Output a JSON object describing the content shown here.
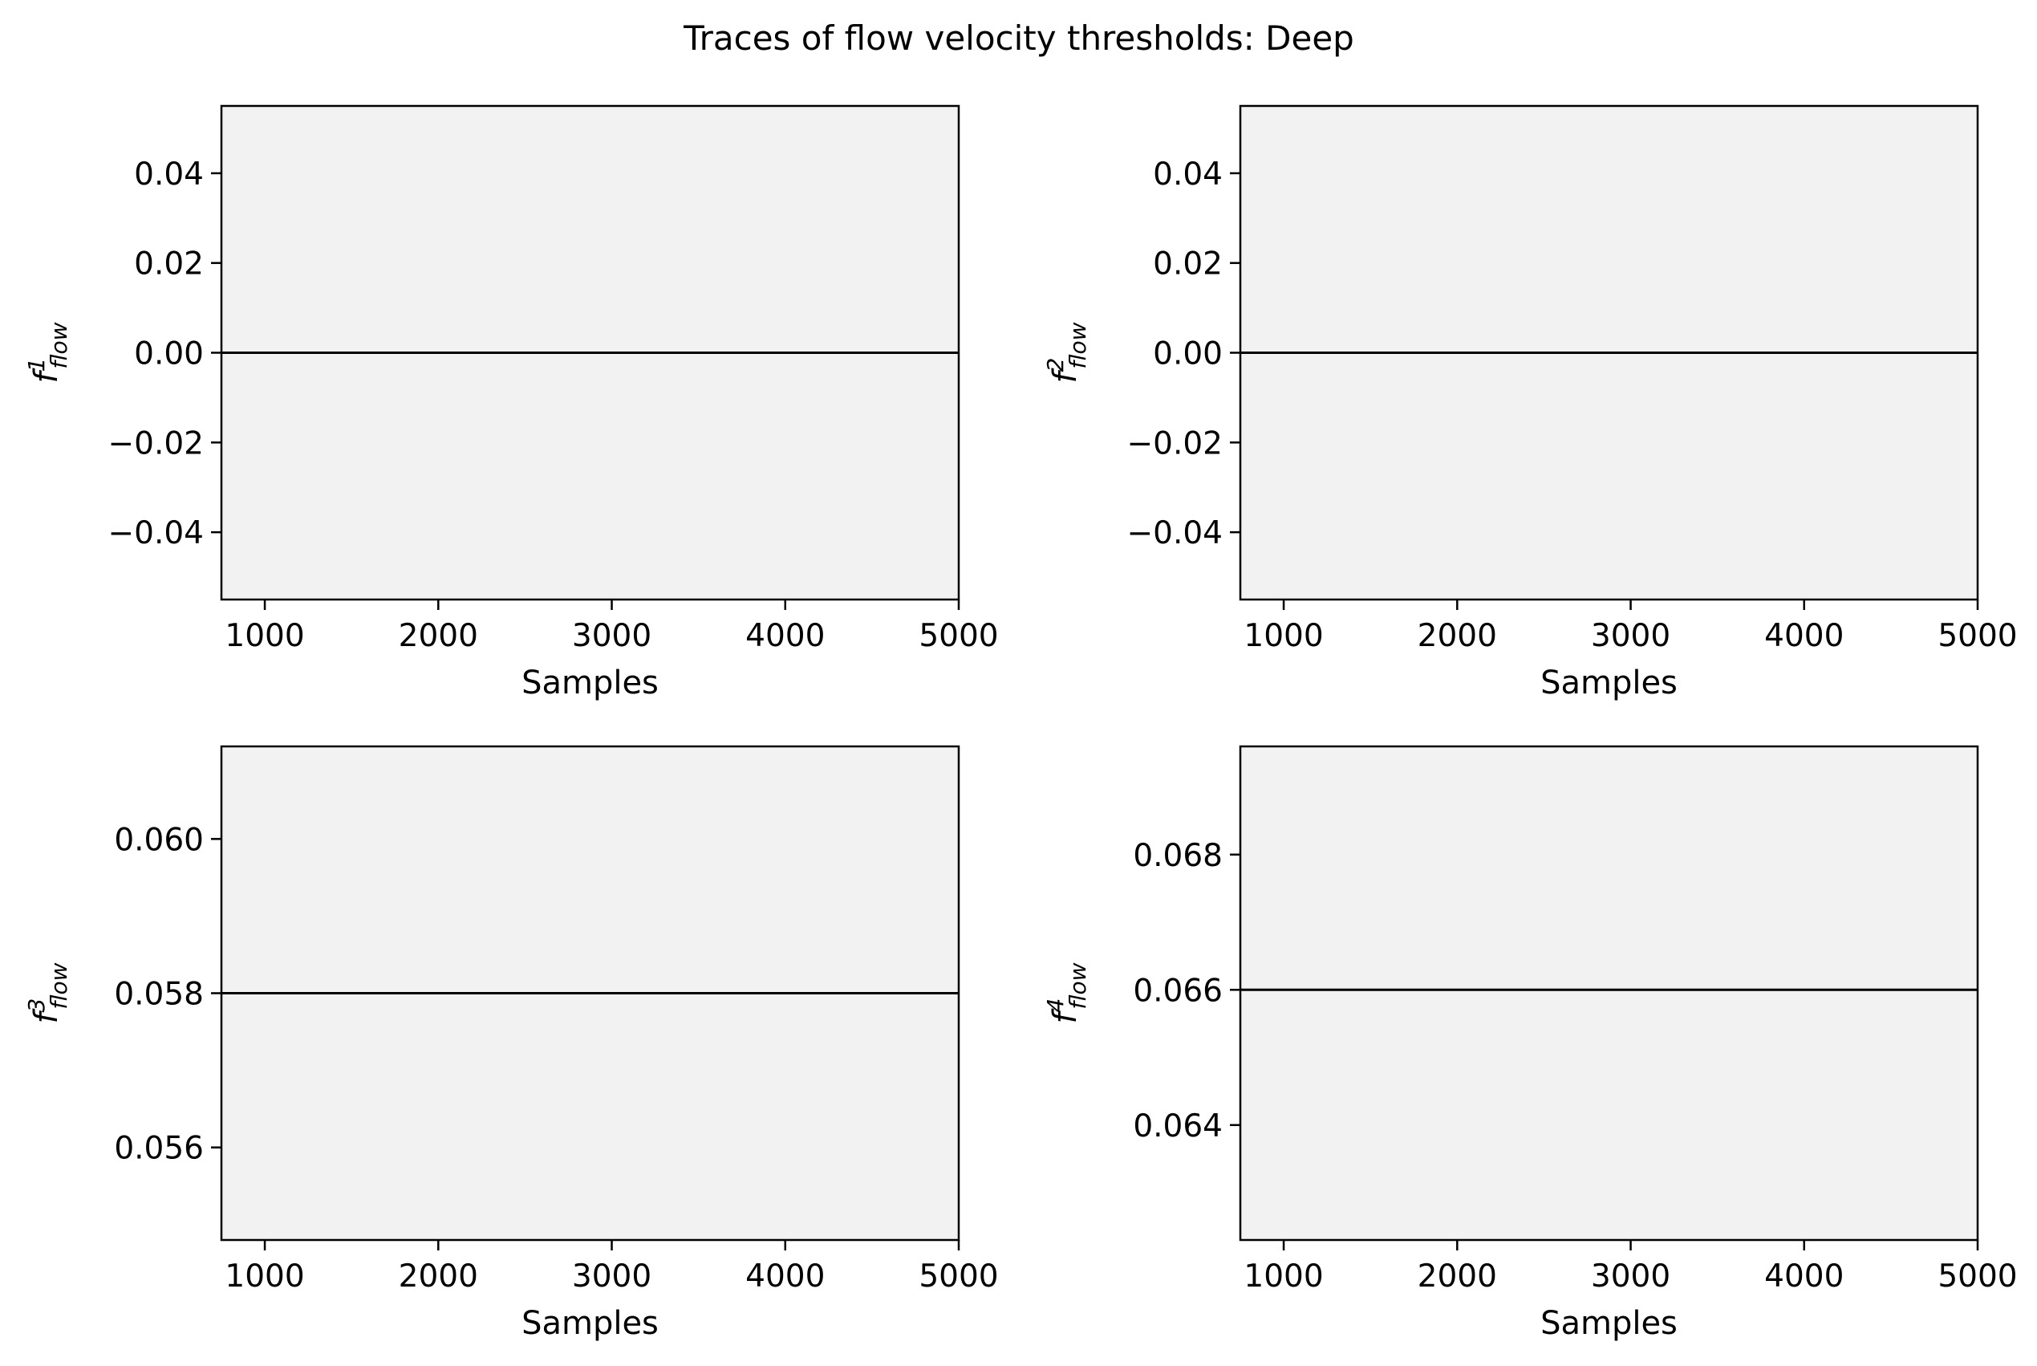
{
  "chart_data": {
    "title": "Traces of flow velocity thresholds: Deep",
    "panels": [
      {
        "type": "line",
        "xlabel": "Samples",
        "ylabel": {
          "base": "f",
          "sup": "1",
          "sub": "flow"
        },
        "xlim": [
          750,
          5000
        ],
        "ylim": [
          -0.055,
          0.055
        ],
        "xticks": [
          1000,
          2000,
          3000,
          4000,
          5000
        ],
        "xtick_labels": [
          "1000",
          "2000",
          "3000",
          "4000",
          "5000"
        ],
        "yticks": [
          -0.04,
          -0.02,
          0.0,
          0.02,
          0.04
        ],
        "ytick_labels": [
          "−0.04",
          "−0.02",
          "0.00",
          "0.02",
          "0.04"
        ],
        "series": [
          {
            "x": [
              750,
              5000
            ],
            "y": [
              0.0,
              0.0
            ],
            "color": "#000000"
          }
        ],
        "background": "#f2f2f2",
        "grid": false
      },
      {
        "type": "line",
        "xlabel": "Samples",
        "ylabel": {
          "base": "f",
          "sup": "2",
          "sub": "flow"
        },
        "xlim": [
          750,
          5000
        ],
        "ylim": [
          -0.055,
          0.055
        ],
        "xticks": [
          1000,
          2000,
          3000,
          4000,
          5000
        ],
        "xtick_labels": [
          "1000",
          "2000",
          "3000",
          "4000",
          "5000"
        ],
        "yticks": [
          -0.04,
          -0.02,
          0.0,
          0.02,
          0.04
        ],
        "ytick_labels": [
          "−0.04",
          "−0.02",
          "0.00",
          "0.02",
          "0.04"
        ],
        "series": [
          {
            "x": [
              750,
              5000
            ],
            "y": [
              0.0,
              0.0
            ],
            "color": "#000000"
          }
        ],
        "background": "#f2f2f2",
        "grid": false
      },
      {
        "type": "line",
        "xlabel": "Samples",
        "ylabel": {
          "base": "f",
          "sup": "3",
          "sub": "flow"
        },
        "xlim": [
          750,
          5000
        ],
        "ylim": [
          0.0548,
          0.0612
        ],
        "xticks": [
          1000,
          2000,
          3000,
          4000,
          5000
        ],
        "xtick_labels": [
          "1000",
          "2000",
          "3000",
          "4000",
          "5000"
        ],
        "yticks": [
          0.056,
          0.058,
          0.06
        ],
        "ytick_labels": [
          "0.056",
          "0.058",
          "0.060"
        ],
        "series": [
          {
            "x": [
              750,
              5000
            ],
            "y": [
              0.058,
              0.058
            ],
            "color": "#000000"
          }
        ],
        "background": "#f2f2f2",
        "grid": false
      },
      {
        "type": "line",
        "xlabel": "Samples",
        "ylabel": {
          "base": "f",
          "sup": "4",
          "sub": "flow"
        },
        "xlim": [
          750,
          5000
        ],
        "ylim": [
          0.0623,
          0.0696
        ],
        "xticks": [
          1000,
          2000,
          3000,
          4000,
          5000
        ],
        "xtick_labels": [
          "1000",
          "2000",
          "3000",
          "4000",
          "5000"
        ],
        "yticks": [
          0.064,
          0.066,
          0.068
        ],
        "ytick_labels": [
          "0.064",
          "0.066",
          "0.068"
        ],
        "series": [
          {
            "x": [
              750,
              5000
            ],
            "y": [
              0.066,
              0.066
            ],
            "color": "#000000"
          }
        ],
        "background": "#f2f2f2",
        "grid": false
      }
    ]
  }
}
